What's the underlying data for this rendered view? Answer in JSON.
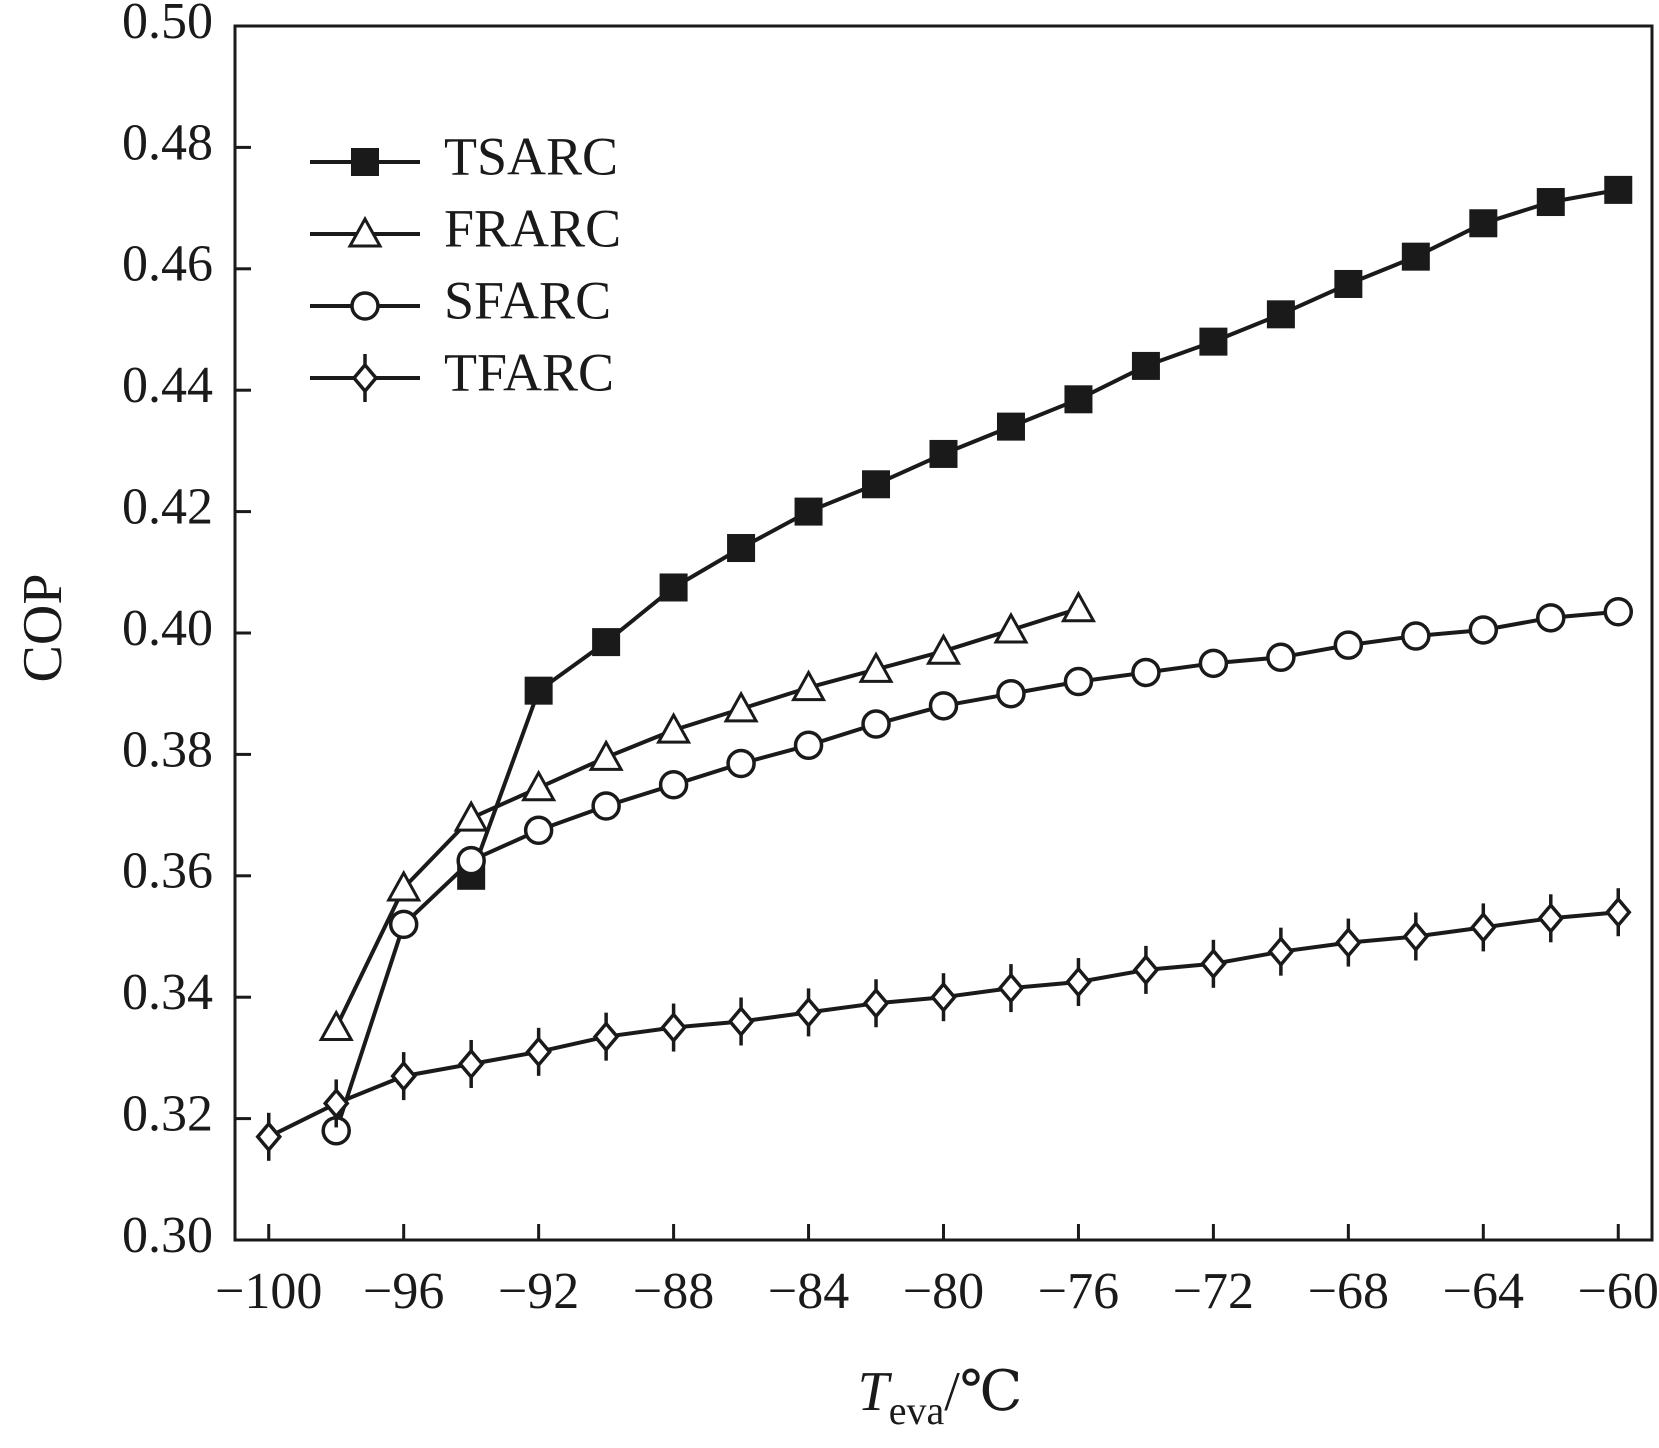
{
  "chart_data": {
    "type": "line",
    "title": "",
    "xlabel": {
      "main": "T",
      "sub": "eva",
      "unit": "/℃"
    },
    "ylabel": "COP",
    "xlim": [
      -101,
      -59
    ],
    "ylim": [
      0.3,
      0.5
    ],
    "xticks": [
      -100,
      -96,
      -92,
      -88,
      -84,
      -80,
      -76,
      -72,
      -68,
      -64,
      -60
    ],
    "xtick_labels": [
      "−100",
      "−96",
      "−92",
      "−88",
      "−84",
      "−80",
      "−76",
      "−72",
      "−68",
      "−64",
      "−60"
    ],
    "yticks": [
      0.3,
      0.32,
      0.34,
      0.36,
      0.38,
      0.4,
      0.42,
      0.44,
      0.46,
      0.48,
      0.5
    ],
    "ytick_labels": [
      "0.30",
      "0.32",
      "0.34",
      "0.36",
      "0.38",
      "0.40",
      "0.42",
      "0.44",
      "0.46",
      "0.48",
      "0.50"
    ],
    "grid": false,
    "legend_position": "top-left",
    "line_color": "#1a1a1a",
    "series": [
      {
        "name": "TSARC",
        "marker": "filled-square",
        "x": [
          -94,
          -92,
          -90,
          -88,
          -86,
          -84,
          -82,
          -80,
          -78,
          -76,
          -74,
          -72,
          -70,
          -68,
          -66,
          -64,
          -62,
          -60
        ],
        "y": [
          0.36,
          0.3905,
          0.3985,
          0.4075,
          0.414,
          0.42,
          0.4245,
          0.4295,
          0.434,
          0.4385,
          0.444,
          0.448,
          0.4525,
          0.4575,
          0.462,
          0.4675,
          0.471,
          0.473
        ]
      },
      {
        "name": "FRARC",
        "marker": "open-triangle",
        "x": [
          -98,
          -96,
          -94,
          -92,
          -90,
          -88,
          -86,
          -84,
          -82,
          -80,
          -78,
          -76
        ],
        "y": [
          0.335,
          0.358,
          0.3695,
          0.3745,
          0.3795,
          0.384,
          0.3875,
          0.391,
          0.394,
          0.397,
          0.4005,
          0.404
        ]
      },
      {
        "name": "SFARC",
        "marker": "open-circle",
        "x": [
          -98,
          -96,
          -94,
          -92,
          -90,
          -88,
          -86,
          -84,
          -82,
          -80,
          -78,
          -76,
          -74,
          -72,
          -70,
          -68,
          -66,
          -64,
          -62,
          -60
        ],
        "y": [
          0.318,
          0.352,
          0.3625,
          0.3675,
          0.3715,
          0.375,
          0.3785,
          0.3815,
          0.385,
          0.388,
          0.39,
          0.392,
          0.3935,
          0.395,
          0.396,
          0.398,
          0.3995,
          0.4005,
          0.4025,
          0.4035
        ]
      },
      {
        "name": "TFARC",
        "marker": "open-diamond-cross",
        "x": [
          -100,
          -98,
          -96,
          -94,
          -92,
          -90,
          -88,
          -86,
          -84,
          -82,
          -80,
          -78,
          -76,
          -74,
          -72,
          -70,
          -68,
          -66,
          -64,
          -62,
          -60
        ],
        "y": [
          0.317,
          0.3225,
          0.327,
          0.329,
          0.331,
          0.3335,
          0.335,
          0.336,
          0.3375,
          0.339,
          0.34,
          0.3415,
          0.3425,
          0.3445,
          0.3455,
          0.3475,
          0.349,
          0.35,
          0.3515,
          0.353,
          0.354
        ]
      }
    ]
  }
}
